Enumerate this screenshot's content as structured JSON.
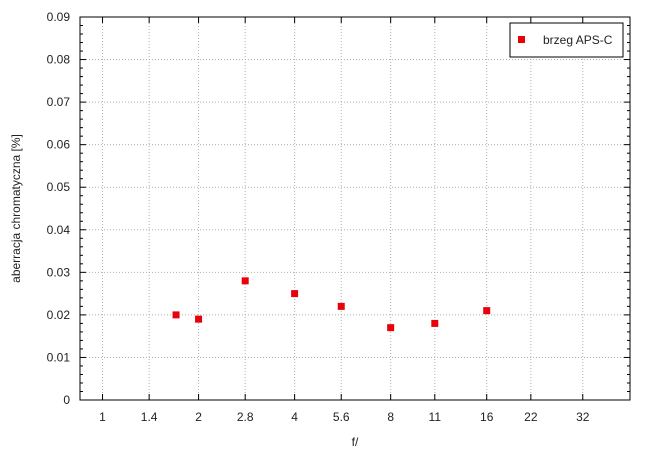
{
  "chart_data": {
    "type": "scatter",
    "title": "",
    "xlabel": "f/",
    "ylabel": "aberracja chromatyczna [%]",
    "x_scale": "log2",
    "x_ticks": [
      "1",
      "1.4",
      "2",
      "2.8",
      "4",
      "5.6",
      "8",
      "11",
      "16",
      "22",
      "32"
    ],
    "xlim": [
      0.85,
      45
    ],
    "ylim": [
      0,
      0.09
    ],
    "y_ticks": [
      "0",
      "0.01",
      "0.02",
      "0.03",
      "0.04",
      "0.05",
      "0.06",
      "0.07",
      "0.08",
      "0.09"
    ],
    "grid": true,
    "legend_position": "top-right",
    "series": [
      {
        "name": "brzeg APS-C",
        "color": "#e8000b",
        "marker": "square",
        "points": [
          {
            "x": 1.7,
            "y": 0.02
          },
          {
            "x": 2.0,
            "y": 0.019
          },
          {
            "x": 2.8,
            "y": 0.028
          },
          {
            "x": 4.0,
            "y": 0.025
          },
          {
            "x": 5.6,
            "y": 0.022
          },
          {
            "x": 8.0,
            "y": 0.017
          },
          {
            "x": 11.0,
            "y": 0.018
          },
          {
            "x": 16.0,
            "y": 0.021
          }
        ]
      }
    ]
  }
}
